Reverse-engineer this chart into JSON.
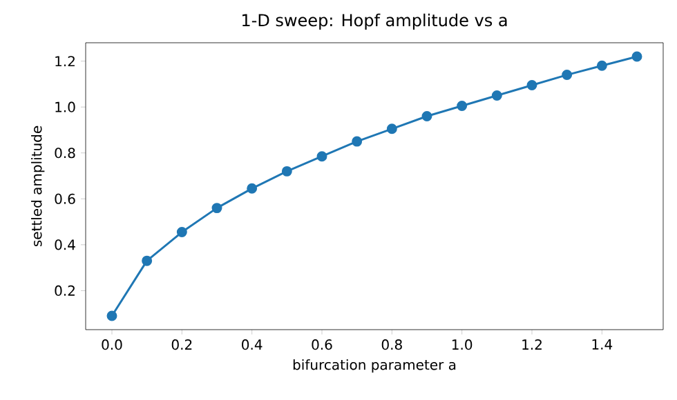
{
  "chart_data": {
    "type": "line",
    "title": "1-D sweep: Hopf amplitude vs a",
    "xlabel": "bifurcation parameter a",
    "ylabel": "settled amplitude",
    "x": [
      0.0,
      0.1,
      0.2,
      0.3,
      0.4,
      0.5,
      0.6,
      0.7,
      0.8,
      0.9,
      1.0,
      1.1,
      1.2,
      1.3,
      1.4,
      1.5
    ],
    "series": [
      {
        "color": "#1f77b4",
        "values": [
          0.09,
          0.33,
          0.455,
          0.56,
          0.645,
          0.72,
          0.785,
          0.85,
          0.905,
          0.96,
          1.005,
          1.05,
          1.095,
          1.14,
          1.18,
          1.22
        ]
      }
    ],
    "xlim": [
      -0.075,
      1.575
    ],
    "ylim": [
      0.03,
      1.28
    ],
    "xticks": [
      {
        "value": 0,
        "label": "0.0"
      },
      {
        "value": 0.2,
        "label": "0.2"
      },
      {
        "value": 0.4,
        "label": "0.4"
      },
      {
        "value": 0.6,
        "label": "0.6"
      },
      {
        "value": 0.8,
        "label": "0.8"
      },
      {
        "value": 1.0,
        "label": "1.0"
      },
      {
        "value": 1.2,
        "label": "1.2"
      },
      {
        "value": 1.4,
        "label": "1.4"
      }
    ],
    "yticks": [
      {
        "value": 0.2,
        "label": "0.2"
      },
      {
        "value": 0.4,
        "label": "0.4"
      },
      {
        "value": 0.6,
        "label": "0.6"
      },
      {
        "value": 0.8,
        "label": "0.8"
      },
      {
        "value": 1.0,
        "label": "1.0"
      },
      {
        "value": 1.2,
        "label": "1.2"
      }
    ],
    "marker": "circle",
    "line_style": "solid",
    "grid": false
  }
}
